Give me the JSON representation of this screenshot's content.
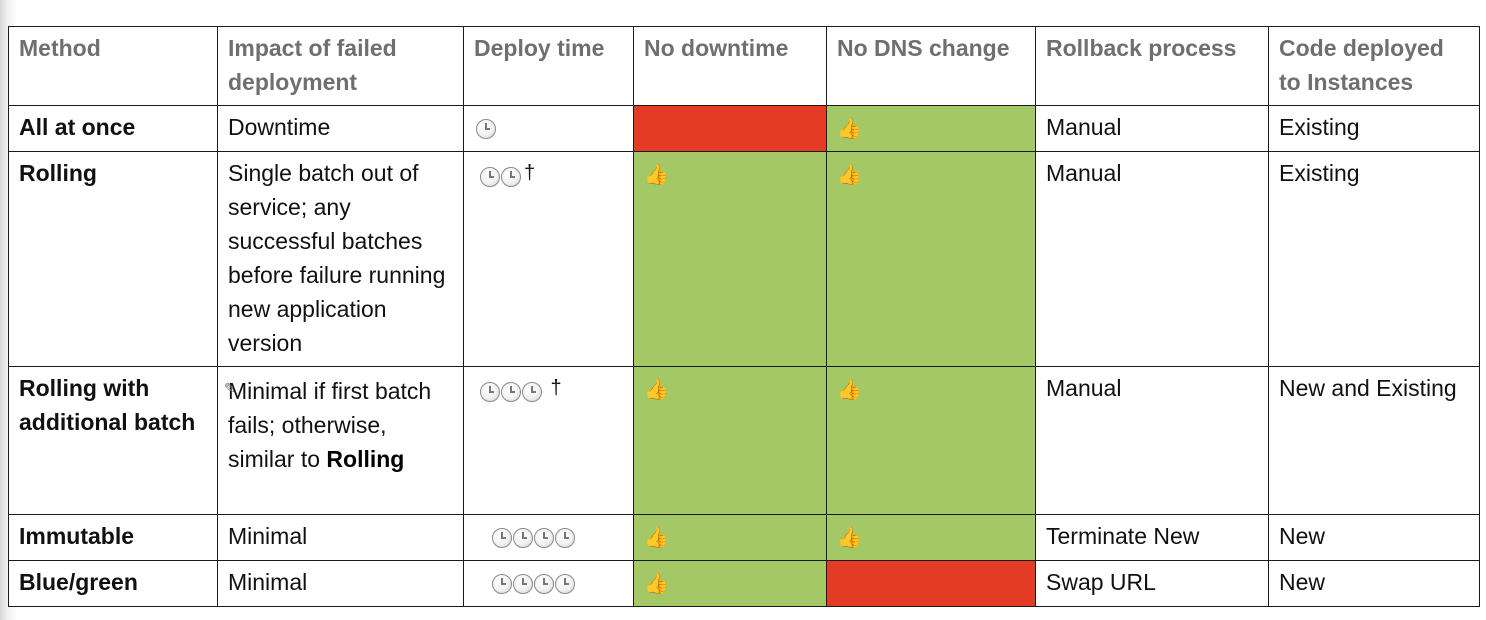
{
  "headers": {
    "method": "Method",
    "impact": "Impact of failed deployment",
    "deploy_time": "Deploy time",
    "no_downtime": "No downtime",
    "no_dns_change": "No DNS change",
    "rollback": "Rollback process",
    "code_deployed": "Code deployed to Instances"
  },
  "icons": {
    "clock": "clock-icon",
    "thumbs_up": "thumbs-up-icon",
    "dagger": "†",
    "pen": "pencil-cursor-icon"
  },
  "colors": {
    "fail": "#e33b24",
    "ok": "#a3c865"
  },
  "rows": [
    {
      "method": "All at once",
      "impact": "Downtime",
      "deploy_time_clocks": 1,
      "deploy_time_mark": "",
      "no_downtime": false,
      "no_dns_change": true,
      "rollback": "Manual",
      "code_deployed": "Existing"
    },
    {
      "method": "Rolling",
      "impact": "Single batch out of service; any successful batches before failure running new application version",
      "deploy_time_clocks": 2,
      "deploy_time_mark": "†",
      "no_downtime": true,
      "no_dns_change": true,
      "rollback": "Manual",
      "code_deployed": "Existing"
    },
    {
      "method": "Rolling with additional batch",
      "impact": "Minimal if first batch fails; otherwise, similar to",
      "impact_bold": "Rolling",
      "deploy_time_clocks": 3,
      "deploy_time_mark": "†",
      "no_downtime": true,
      "no_dns_change": true,
      "rollback": "Manual",
      "code_deployed": "New and Existing"
    },
    {
      "method": "Immutable",
      "impact": "Minimal",
      "deploy_time_clocks": 4,
      "deploy_time_mark": "",
      "no_downtime": true,
      "no_dns_change": true,
      "rollback": "Terminate New",
      "code_deployed": "New"
    },
    {
      "method": "Blue/green",
      "impact": "Minimal",
      "deploy_time_clocks": 4,
      "deploy_time_mark": "",
      "no_downtime": true,
      "no_dns_change": false,
      "rollback": "Swap URL",
      "code_deployed": "New"
    }
  ]
}
